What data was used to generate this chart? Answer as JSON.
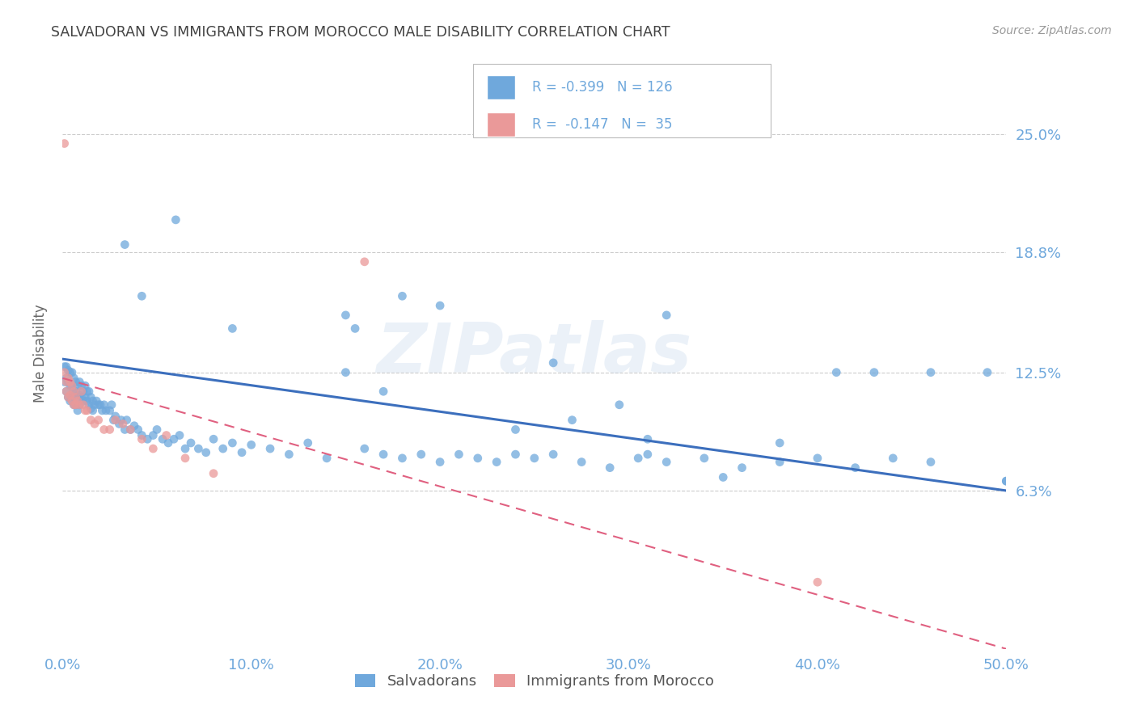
{
  "title": "SALVADORAN VS IMMIGRANTS FROM MOROCCO MALE DISABILITY CORRELATION CHART",
  "source": "Source: ZipAtlas.com",
  "ylabel": "Male Disability",
  "watermark": "ZIPatlas",
  "right_ytick_vals": [
    0.063,
    0.125,
    0.188,
    0.25
  ],
  "right_ytick_labels": [
    "6.3%",
    "12.5%",
    "18.8%",
    "25.0%"
  ],
  "xtick_vals": [
    0.0,
    0.1,
    0.2,
    0.3,
    0.4,
    0.5
  ],
  "xtick_labels": [
    "0.0%",
    "10.0%",
    "20.0%",
    "30.0%",
    "40.0%",
    "50.0%"
  ],
  "title_color": "#434343",
  "source_color": "#999999",
  "blue_color": "#6fa8dc",
  "pink_color": "#ea9999",
  "blue_line_color": "#3c6fbd",
  "pink_line_color": "#e06080",
  "axis_label_color": "#6fa8dc",
  "ylabel_color": "#666666",
  "grid_color": "#cccccc",
  "legend_label_1": "Salvadorans",
  "legend_label_2": "Immigrants from Morocco",
  "xlim": [
    0.0,
    0.5
  ],
  "ylim": [
    -0.02,
    0.29
  ],
  "blue_reg": [
    0.0,
    0.132,
    0.5,
    0.063
  ],
  "pink_reg": [
    0.0,
    0.122,
    0.5,
    -0.02
  ],
  "blue_x": [
    0.001,
    0.001,
    0.002,
    0.002,
    0.002,
    0.003,
    0.003,
    0.003,
    0.004,
    0.004,
    0.004,
    0.005,
    0.005,
    0.005,
    0.006,
    0.006,
    0.006,
    0.007,
    0.007,
    0.007,
    0.008,
    0.008,
    0.008,
    0.009,
    0.009,
    0.009,
    0.01,
    0.01,
    0.011,
    0.011,
    0.012,
    0.012,
    0.013,
    0.013,
    0.014,
    0.014,
    0.015,
    0.015,
    0.016,
    0.016,
    0.017,
    0.018,
    0.019,
    0.02,
    0.021,
    0.022,
    0.023,
    0.025,
    0.026,
    0.027,
    0.028,
    0.03,
    0.031,
    0.033,
    0.034,
    0.036,
    0.038,
    0.04,
    0.042,
    0.045,
    0.048,
    0.05,
    0.053,
    0.056,
    0.059,
    0.062,
    0.065,
    0.068,
    0.072,
    0.076,
    0.08,
    0.085,
    0.09,
    0.095,
    0.1,
    0.11,
    0.12,
    0.13,
    0.14,
    0.15,
    0.16,
    0.17,
    0.18,
    0.19,
    0.2,
    0.21,
    0.22,
    0.23,
    0.24,
    0.25,
    0.26,
    0.275,
    0.29,
    0.305,
    0.32,
    0.34,
    0.36,
    0.38,
    0.4,
    0.42,
    0.44,
    0.46,
    0.033,
    0.32,
    0.042,
    0.155,
    0.49,
    0.5,
    0.15,
    0.31,
    0.27,
    0.35,
    0.41,
    0.43,
    0.38,
    0.46,
    0.295,
    0.2,
    0.18,
    0.24,
    0.5,
    0.31,
    0.06,
    0.26,
    0.09,
    0.17
  ],
  "blue_y": [
    0.128,
    0.12,
    0.128,
    0.122,
    0.115,
    0.126,
    0.12,
    0.112,
    0.125,
    0.118,
    0.11,
    0.125,
    0.118,
    0.112,
    0.122,
    0.115,
    0.108,
    0.12,
    0.115,
    0.108,
    0.118,
    0.112,
    0.105,
    0.12,
    0.113,
    0.108,
    0.118,
    0.112,
    0.115,
    0.11,
    0.118,
    0.112,
    0.115,
    0.11,
    0.115,
    0.108,
    0.112,
    0.106,
    0.11,
    0.105,
    0.108,
    0.11,
    0.108,
    0.108,
    0.105,
    0.108,
    0.105,
    0.105,
    0.108,
    0.1,
    0.102,
    0.098,
    0.1,
    0.095,
    0.1,
    0.095,
    0.097,
    0.095,
    0.092,
    0.09,
    0.092,
    0.095,
    0.09,
    0.088,
    0.09,
    0.092,
    0.085,
    0.088,
    0.085,
    0.083,
    0.09,
    0.085,
    0.088,
    0.083,
    0.087,
    0.085,
    0.082,
    0.088,
    0.08,
    0.155,
    0.085,
    0.082,
    0.08,
    0.082,
    0.078,
    0.082,
    0.08,
    0.078,
    0.082,
    0.08,
    0.082,
    0.078,
    0.075,
    0.08,
    0.078,
    0.08,
    0.075,
    0.078,
    0.08,
    0.075,
    0.08,
    0.078,
    0.192,
    0.155,
    0.165,
    0.148,
    0.125,
    0.068,
    0.125,
    0.09,
    0.1,
    0.07,
    0.125,
    0.125,
    0.088,
    0.125,
    0.108,
    0.16,
    0.165,
    0.095,
    0.068,
    0.082,
    0.205,
    0.13,
    0.148,
    0.115
  ],
  "pink_x": [
    0.001,
    0.001,
    0.002,
    0.002,
    0.003,
    0.003,
    0.004,
    0.004,
    0.005,
    0.005,
    0.006,
    0.006,
    0.007,
    0.007,
    0.008,
    0.009,
    0.01,
    0.011,
    0.012,
    0.013,
    0.015,
    0.017,
    0.019,
    0.022,
    0.025,
    0.028,
    0.032,
    0.036,
    0.042,
    0.048,
    0.055,
    0.065,
    0.08,
    0.4,
    0.16
  ],
  "pink_y": [
    0.245,
    0.125,
    0.12,
    0.115,
    0.122,
    0.112,
    0.12,
    0.113,
    0.118,
    0.11,
    0.115,
    0.108,
    0.112,
    0.108,
    0.11,
    0.108,
    0.115,
    0.108,
    0.105,
    0.105,
    0.1,
    0.098,
    0.1,
    0.095,
    0.095,
    0.1,
    0.098,
    0.095,
    0.09,
    0.085,
    0.092,
    0.08,
    0.072,
    0.015,
    0.183
  ]
}
